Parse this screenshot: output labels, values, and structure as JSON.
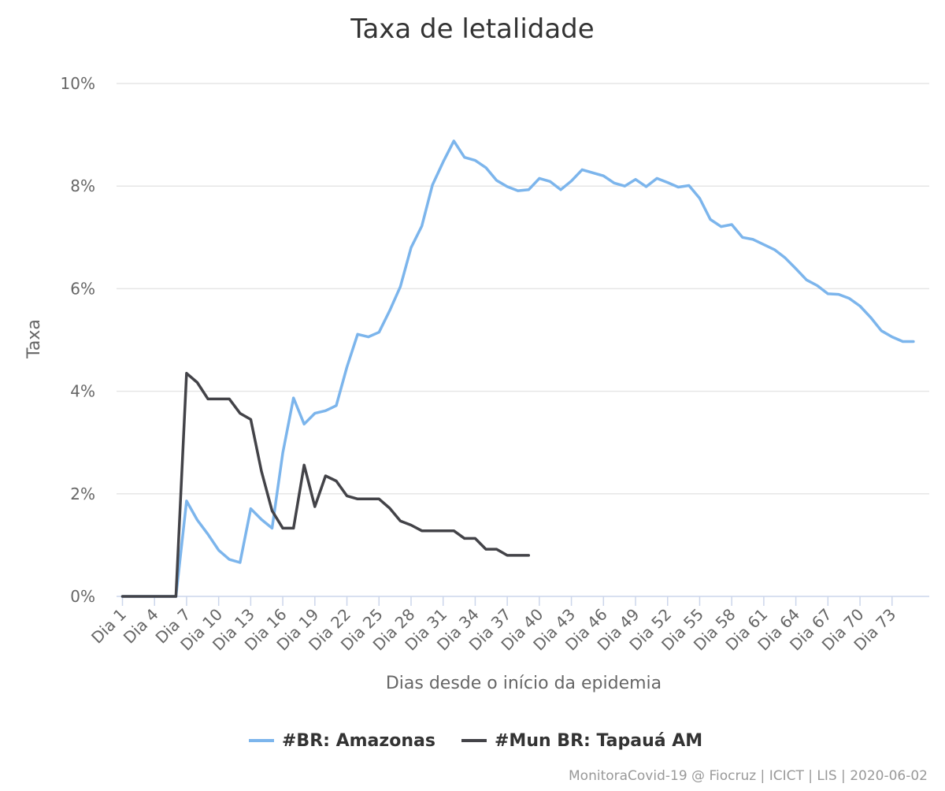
{
  "chart_data": {
    "type": "line",
    "title": "Taxa de letalidade",
    "xlabel": "Dias desde o início da epidemia",
    "ylabel": "Taxa",
    "ylim": [
      0,
      10
    ],
    "yticks": [
      0,
      2,
      4,
      6,
      8,
      10
    ],
    "ytick_labels": [
      "0%",
      "2%",
      "4%",
      "6%",
      "8%",
      "10%"
    ],
    "x_day_range": [
      1,
      76
    ],
    "x_tick_days": [
      1,
      4,
      7,
      10,
      13,
      16,
      19,
      22,
      25,
      28,
      31,
      34,
      37,
      40,
      43,
      46,
      49,
      52,
      55,
      58,
      61,
      64,
      67,
      70,
      73
    ],
    "x_tick_labels": [
      "Dia 1",
      "Dia 4",
      "Dia 7",
      "Dia 10",
      "Dia 13",
      "Dia 16",
      "Dia 19",
      "Dia 22",
      "Dia 25",
      "Dia 28",
      "Dia 31",
      "Dia 34",
      "Dia 37",
      "Dia 40",
      "Dia 43",
      "Dia 46",
      "Dia 49",
      "Dia 52",
      "Dia 55",
      "Dia 58",
      "Dia 61",
      "Dia 64",
      "Dia 67",
      "Dia 70",
      "Dia 73"
    ],
    "grid": true,
    "legend_position": "bottom-center",
    "series": [
      {
        "name": "#BR: Amazonas",
        "color": "#7cb5ec",
        "start_day": 1,
        "values": [
          0,
          0,
          0,
          0,
          0,
          0,
          1.86,
          1.49,
          1.21,
          0.9,
          0.72,
          0.66,
          1.71,
          1.5,
          1.33,
          2.8,
          3.87,
          3.36,
          3.57,
          3.62,
          3.72,
          4.47,
          5.11,
          5.06,
          5.15,
          5.57,
          6.04,
          6.8,
          7.22,
          8.02,
          8.47,
          8.88,
          8.56,
          8.5,
          8.36,
          8.11,
          7.99,
          7.91,
          7.93,
          8.15,
          8.09,
          7.93,
          8.1,
          8.32,
          8.26,
          8.2,
          8.06,
          8.0,
          8.13,
          7.99,
          8.15,
          8.07,
          7.98,
          8.01,
          7.76,
          7.35,
          7.21,
          7.25,
          7.0,
          6.96,
          6.86,
          6.76,
          6.6,
          6.39,
          6.17,
          6.06,
          5.9,
          5.89,
          5.81,
          5.66,
          5.44,
          5.18,
          5.06,
          4.97,
          4.97
        ]
      },
      {
        "name": "#Mun BR: Tapauá AM",
        "color": "#434348",
        "start_day": 1,
        "values": [
          0,
          0,
          0,
          0,
          0,
          0,
          4.35,
          4.17,
          3.85,
          3.85,
          3.85,
          3.57,
          3.45,
          2.44,
          1.67,
          1.33,
          1.33,
          2.56,
          1.75,
          2.35,
          2.25,
          1.96,
          1.9,
          1.9,
          1.9,
          1.72,
          1.47,
          1.39,
          1.28,
          1.28,
          1.28,
          1.28,
          1.13,
          1.13,
          0.92,
          0.92,
          0.8,
          0.8,
          0.8
        ]
      }
    ]
  },
  "credits": "MonitoraCovid-19 @ Fiocruz | ICICT | LIS | 2020-06-02"
}
